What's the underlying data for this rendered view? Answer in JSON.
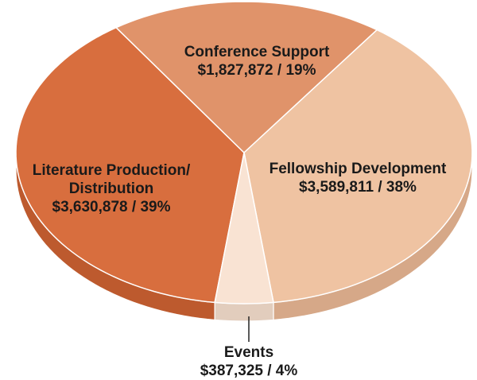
{
  "chart_data": {
    "type": "pie",
    "categories": [
      "Literature Production/ Distribution",
      "Conference Support",
      "Fellowship Development",
      "Events"
    ],
    "values": [
      3630878,
      1827872,
      3589811,
      387325
    ],
    "value_labels": [
      "$3,630,878 / 39%",
      "$1,827,872 / 19%",
      "$3,589,811 / 38%",
      "$387,325 / 4%"
    ],
    "colors": [
      "#d86e3e",
      "#e0936a",
      "#efc3a2",
      "#f9e3d3"
    ],
    "side_colors": [
      "#bd5a2e",
      "#c97c55",
      "#d6a888",
      "#e2cdbd"
    ]
  }
}
